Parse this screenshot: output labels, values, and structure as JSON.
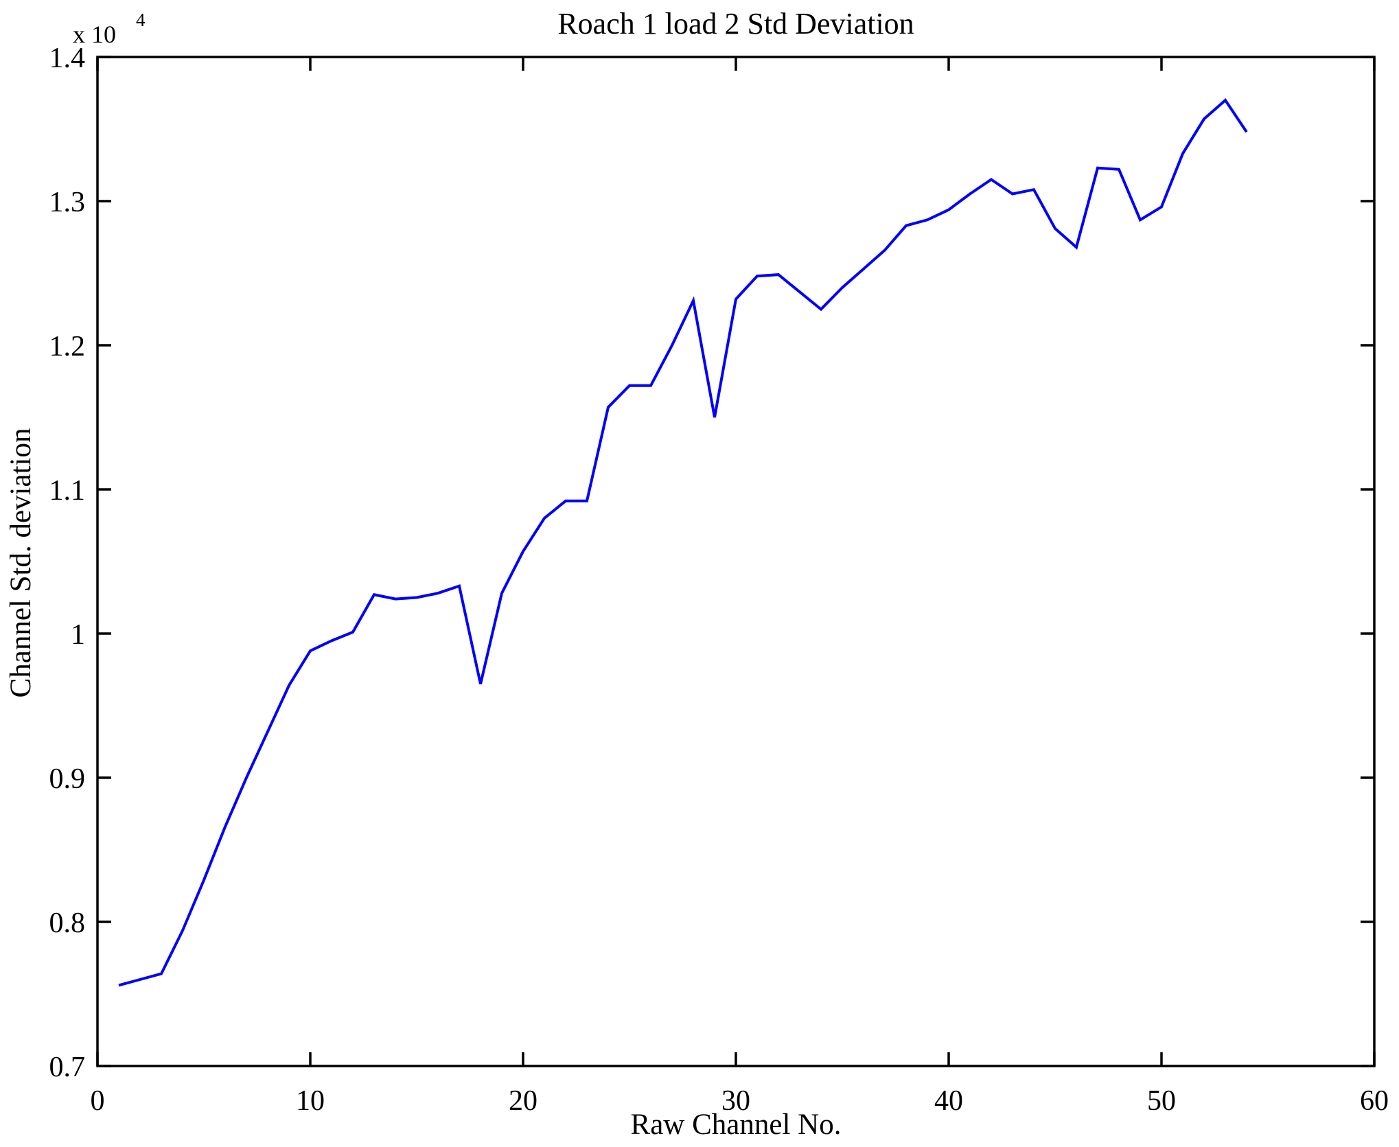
{
  "title": "Roach 1 load 2 Std Deviation",
  "chart_data": {
    "type": "line",
    "title": "Roach 1 load 2 Std Deviation",
    "xlabel": "Raw Channel No.",
    "ylabel": "Channel Std. deviation",
    "y_scale_base": "x 10",
    "y_scale_exp": "4",
    "line_color": "#0000FF",
    "axis_color": "#000000",
    "grid": false,
    "legend_position": "none",
    "xlim": [
      0,
      60
    ],
    "ylim": [
      7000,
      14000
    ],
    "x_ticks": [
      0,
      10,
      20,
      30,
      40,
      50,
      60
    ],
    "x_tick_labels": [
      "0",
      "10",
      "20",
      "30",
      "40",
      "50",
      "60"
    ],
    "y_ticks": [
      7000,
      8000,
      9000,
      10000,
      11000,
      12000,
      13000,
      14000
    ],
    "y_tick_labels": [
      "0.7",
      "0.8",
      "0.9",
      "1",
      "1.1",
      "1.2",
      "1.3",
      "1.4"
    ],
    "x": [
      1,
      2,
      3,
      4,
      5,
      6,
      7,
      8,
      9,
      10,
      11,
      12,
      13,
      14,
      15,
      16,
      17,
      18,
      19,
      20,
      21,
      22,
      23,
      24,
      25,
      26,
      27,
      28,
      29,
      30,
      31,
      32,
      33,
      34,
      35,
      36,
      37,
      38,
      39,
      40,
      41,
      42,
      43,
      44,
      45,
      46,
      47,
      48,
      49,
      50,
      51,
      52,
      53,
      54
    ],
    "values": [
      7560,
      7600,
      7640,
      7940,
      8290,
      8660,
      9000,
      9320,
      9640,
      9880,
      9950,
      10010,
      10270,
      10240,
      10250,
      10280,
      10330,
      9650,
      10280,
      10570,
      10800,
      10920,
      10920,
      11570,
      11720,
      11720,
      12000,
      12310,
      11500,
      12320,
      12480,
      12490,
      12370,
      12250,
      12400,
      12530,
      12660,
      12830,
      12870,
      12940,
      13050,
      13150,
      13050,
      13080,
      12810,
      12680,
      13230,
      13220,
      12870,
      12960,
      13330,
      13570,
      13700,
      13480
    ]
  }
}
